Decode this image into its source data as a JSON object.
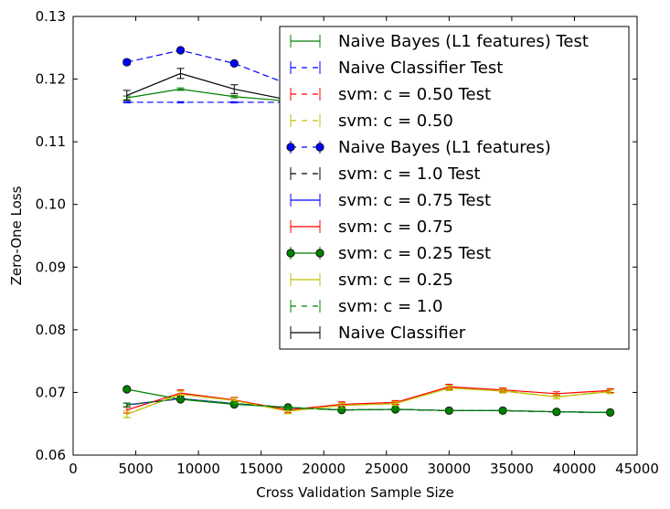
{
  "chart_data": {
    "type": "line",
    "xlabel": "Cross Validation Sample Size",
    "ylabel": "Zero-One Loss",
    "xlim": [
      0,
      45000
    ],
    "ylim": [
      0.06,
      0.13
    ],
    "xticks": [
      0,
      5000,
      10000,
      15000,
      20000,
      25000,
      30000,
      35000,
      40000,
      45000
    ],
    "yticks": [
      0.06,
      0.07,
      0.08,
      0.09,
      0.1,
      0.11,
      0.12,
      0.13
    ],
    "xtick_labels": [
      "0",
      "5000",
      "10000",
      "15000",
      "20000",
      "25000",
      "30000",
      "35000",
      "40000",
      "45000"
    ],
    "ytick_labels": [
      "0.06",
      "0.07",
      "0.08",
      "0.09",
      "0.10",
      "0.11",
      "0.12",
      "0.13"
    ],
    "grid": false,
    "legend_position": "top-right",
    "x": [
      4286,
      8571,
      12857,
      17143,
      21429,
      25714,
      30000,
      34286,
      38571,
      42857
    ],
    "series": [
      {
        "name": "Naive Bayes (L1 features) Test",
        "color": "#008000",
        "dash": "solid",
        "marker": "none",
        "values": [
          0.117,
          0.1184,
          0.1172,
          0.1165,
          0.1162,
          0.1162,
          0.1162,
          0.1162,
          0.1162,
          0.1162
        ],
        "errors": [
          0.0003,
          0.0002,
          0.0002,
          0.0002,
          0.0002,
          0.0002,
          0.0002,
          0.0002,
          0.0002,
          0.0002
        ]
      },
      {
        "name": "Naive Classifier Test",
        "color": "#0000ff",
        "dash": "dashed",
        "marker": "none",
        "values": [
          0.1163,
          0.1163,
          0.1163,
          0.1163,
          0.1163,
          0.1163,
          0.1163,
          0.1163,
          0.1163,
          0.1163
        ],
        "errors": [
          0.0001,
          0.0001,
          0.0001,
          0.0001,
          0.0001,
          0.0001,
          0.0001,
          0.0001,
          0.0001,
          0.0001
        ]
      },
      {
        "name": "svm: c = 0.50 Test",
        "color": "#ff0000",
        "dash": "dashed",
        "marker": "none",
        "values": [
          0.068,
          0.069,
          0.0682,
          0.0676,
          0.0672,
          0.0673,
          0.0671,
          0.0671,
          0.0669,
          0.0668
        ],
        "errors": [
          0.0003,
          0.0002,
          0.0002,
          0.0002,
          0.0002,
          0.0002,
          0.0001,
          0.0001,
          0.0001,
          0.0001
        ]
      },
      {
        "name": "svm: c = 0.50",
        "color": "#bfbf00",
        "dash": "dashed",
        "marker": "none",
        "values": [
          0.0665,
          0.0698,
          0.0688,
          0.067,
          0.068,
          0.0683,
          0.0708,
          0.0703,
          0.0693,
          0.0702
        ],
        "errors": [
          0.0005,
          0.0005,
          0.0004,
          0.0004,
          0.0004,
          0.0003,
          0.0004,
          0.0003,
          0.0003,
          0.0003
        ]
      },
      {
        "name": "Naive Bayes (L1 features)",
        "color": "#0000ff",
        "dash": "dashed",
        "marker": "circle",
        "values": [
          0.1227,
          0.1246,
          0.1225,
          0.1192,
          0.1175,
          0.117,
          0.1168,
          0.1167,
          0.1166,
          0.1165
        ],
        "errors": [
          0.0004,
          0.0003,
          0.0003,
          0.0003,
          0.0003,
          0.0003,
          0.0003,
          0.0003,
          0.0003,
          0.0003
        ]
      },
      {
        "name": "svm: c = 1.0 Test",
        "color": "#000000",
        "dash": "dashed",
        "marker": "none",
        "values": [
          0.068,
          0.069,
          0.0682,
          0.0676,
          0.0672,
          0.0673,
          0.0671,
          0.0671,
          0.0669,
          0.0668
        ],
        "errors": [
          0.0003,
          0.0002,
          0.0002,
          0.0002,
          0.0002,
          0.0002,
          0.0001,
          0.0001,
          0.0001,
          0.0001
        ]
      },
      {
        "name": "svm: c = 0.75 Test",
        "color": "#0000ff",
        "dash": "solid",
        "marker": "none",
        "values": [
          0.068,
          0.069,
          0.0682,
          0.0676,
          0.0672,
          0.0673,
          0.0671,
          0.0671,
          0.0669,
          0.0668
        ],
        "errors": [
          0.0003,
          0.0002,
          0.0002,
          0.0002,
          0.0002,
          0.0002,
          0.0001,
          0.0001,
          0.0001,
          0.0001
        ]
      },
      {
        "name": "svm: c = 0.75",
        "color": "#ff0000",
        "dash": "solid",
        "marker": "none",
        "values": [
          0.0672,
          0.0699,
          0.0688,
          0.0672,
          0.0681,
          0.0684,
          0.0709,
          0.0704,
          0.0698,
          0.0703
        ],
        "errors": [
          0.0005,
          0.0005,
          0.0004,
          0.0004,
          0.0004,
          0.0003,
          0.0004,
          0.0003,
          0.0003,
          0.0003
        ]
      },
      {
        "name": "svm: c = 0.25 Test",
        "color": "#008000",
        "dash": "solid",
        "marker": "circle",
        "values": [
          0.0705,
          0.0689,
          0.0681,
          0.0676,
          0.0672,
          0.0673,
          0.0671,
          0.0671,
          0.0669,
          0.0668
        ],
        "errors": [
          0.0002,
          0.0002,
          0.0002,
          0.0002,
          0.0002,
          0.0002,
          0.0001,
          0.0001,
          0.0001,
          0.0001
        ]
      },
      {
        "name": "svm: c = 0.25",
        "color": "#bfbf00",
        "dash": "solid",
        "marker": "none",
        "values": [
          0.0665,
          0.0697,
          0.0687,
          0.067,
          0.0679,
          0.0682,
          0.0707,
          0.0702,
          0.0693,
          0.0701
        ],
        "errors": [
          0.0005,
          0.0005,
          0.0004,
          0.0004,
          0.0004,
          0.0003,
          0.0004,
          0.0003,
          0.0003,
          0.0003
        ]
      },
      {
        "name": "svm: c = 1.0",
        "color": "#008000",
        "dash": "dashed",
        "marker": "none",
        "values": [
          0.068,
          0.069,
          0.0682,
          0.0676,
          0.0672,
          0.0673,
          0.0671,
          0.0671,
          0.0669,
          0.0668
        ],
        "errors": [
          0.0003,
          0.0002,
          0.0002,
          0.0002,
          0.0002,
          0.0002,
          0.0001,
          0.0001,
          0.0001,
          0.0001
        ]
      },
      {
        "name": "Naive Classifier",
        "color": "#000000",
        "dash": "solid",
        "marker": "none",
        "values": [
          0.1174,
          0.1209,
          0.1184,
          0.1167,
          0.1164,
          0.1163,
          0.1163,
          0.1163,
          0.1163,
          0.1163
        ],
        "errors": [
          0.0008,
          0.0008,
          0.0007,
          0.0005,
          0.0004,
          0.0003,
          0.0003,
          0.0003,
          0.0003,
          0.0003
        ]
      }
    ]
  }
}
